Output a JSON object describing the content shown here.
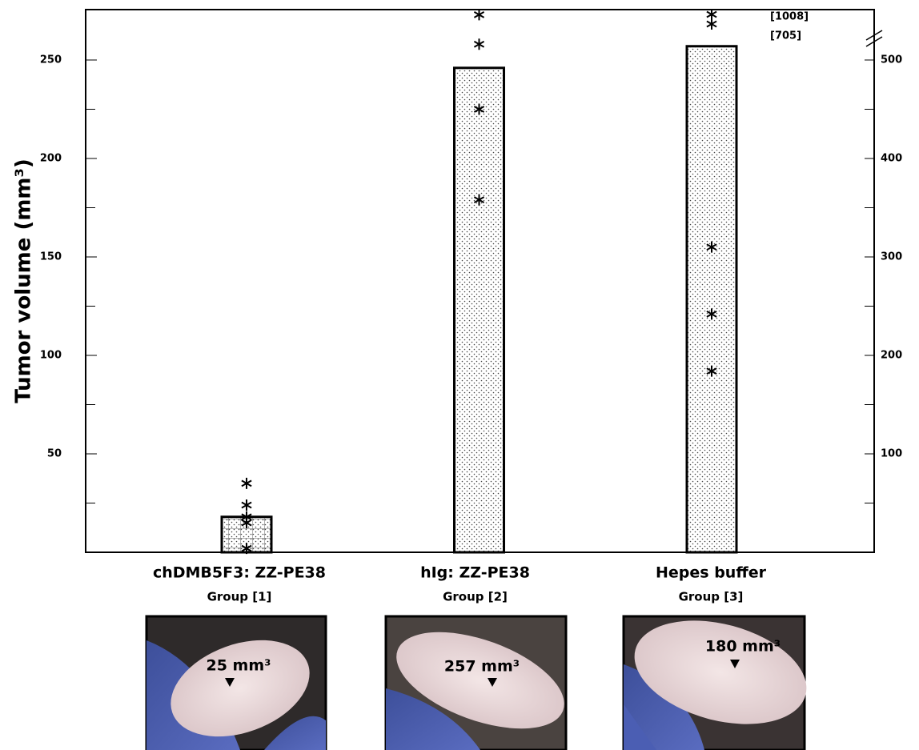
{
  "chart_data": {
    "type": "bar",
    "ylabel": "Tumor volume (mm³)",
    "categories": [
      "chDMB5F3: ZZ-PE38",
      "hIg: ZZ-PE38",
      "Hepes buffer"
    ],
    "group_labels": [
      "Group [1]",
      "Group [2]",
      "Group [3]"
    ],
    "values": [
      18,
      246,
      257
    ],
    "points": [
      [
        35,
        24,
        18,
        15,
        2
      ],
      [
        273,
        258,
        225,
        179
      ],
      [
        155,
        121,
        92
      ]
    ],
    "off_scale_points": [
      {
        "value": 1008,
        "label": "[1008]"
      },
      {
        "value": 705,
        "label": "[705]"
      }
    ],
    "ylim": [
      0,
      275.6
    ],
    "yticks": [
      50,
      100,
      150,
      200,
      250
    ],
    "yminor": [
      25,
      75,
      125,
      175,
      225
    ],
    "y2lim": [
      0,
      551.2
    ],
    "y2ticks": [
      100,
      200,
      300,
      400,
      500
    ],
    "y2minor": [
      50,
      150,
      250,
      350,
      450
    ],
    "bar_edge_color": "#000000"
  },
  "photos": [
    {
      "label": "25 mm³"
    },
    {
      "label": "257 mm³"
    },
    {
      "label": "180 mm³"
    }
  ]
}
